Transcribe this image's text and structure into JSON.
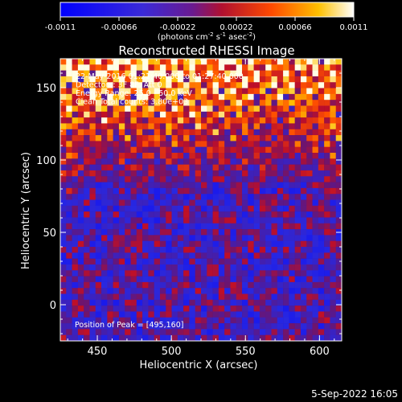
{
  "chart_data": {
    "type": "heatmap",
    "title": "Reconstructed RHESSI Image",
    "xlabel": "Heliocentric X (arcsec)",
    "ylabel": "Heliocentric Y (arcsec)",
    "xlim": [
      425,
      615
    ],
    "ylim": [
      -25,
      170
    ],
    "x_ticks": [
      "450",
      "500",
      "550",
      "600"
    ],
    "y_ticks": [
      "0",
      "50",
      "100",
      "150"
    ],
    "colorbar": {
      "colormap": "blue-purple-red-orange-yellow-white",
      "range": [
        -0.0011,
        0.0011
      ],
      "tick_labels": [
        "-0.0011",
        "-0.00066",
        "-0.00022",
        "0.00022",
        "0.00066",
        "0.0011"
      ],
      "unit_label": {
        "prefix": "(photons cm",
        "e1": "-2",
        "mid1": " s",
        "e2": "-1",
        "mid2": " asec",
        "e3": "-2",
        "suffix": ")"
      }
    },
    "annotations": [
      "22-May-2016 01:21:40.000 to 01:27:40.000",
      "Detectors: 3F 8F, Att 0",
      "Energy Range: 25.0 - 50.0 keV",
      "Clean   Total counts: 3.80e+03"
    ],
    "peak_label": "Position of Peak = [495,160]",
    "peak_position": [
      495,
      160
    ],
    "colors": {
      "negative": "#1c20ff",
      "background": "#3a1a8e",
      "positive_low": "#c4122a",
      "positive_mid": "#ff6a00",
      "positive_high": "#fff6c0"
    }
  },
  "footer": {
    "timestamp": "5-Sep-2022 16:05"
  }
}
